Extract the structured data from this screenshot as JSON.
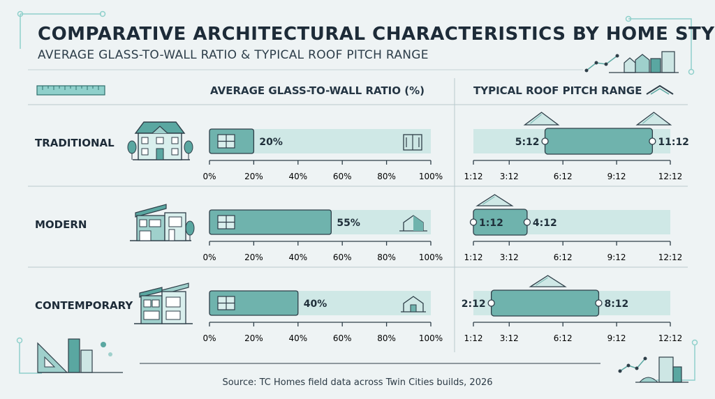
{
  "header": {
    "title": "COMPARATIVE ARCHITECTURAL CHARACTERISTICS BY HOME STYLE",
    "subtitle": "AVERAGE GLASS-TO-WALL RATIO & TYPICAL ROOF PITCH RANGE"
  },
  "columns": {
    "glass_header": "AVERAGE GLASS-TO-WALL RATIO (%)",
    "pitch_header": "TYPICAL ROOF PITCH RANGE"
  },
  "footer": {
    "source": "Source: TC Homes field data across Twin Cities builds, 2026"
  },
  "colors": {
    "accent": "#4e9e9a",
    "accent_dark": "#2f6f6c",
    "track": "#cfe8e6",
    "bar_fill": "#6fb3ad",
    "line": "#2e3e48",
    "divider": "#b9c9cd"
  },
  "icons": [
    "ruler-icon",
    "roof-icon",
    "traditional-house-icon",
    "modern-house-icon",
    "contemporary-house-icon",
    "window-icon",
    "skyline-icon"
  ],
  "chart_data": [
    {
      "type": "bar",
      "orientation": "horizontal",
      "title": "AVERAGE GLASS-TO-WALL RATIO (%)",
      "categories": [
        "TRADITIONAL",
        "MODERN",
        "CONTEMPORARY"
      ],
      "values": [
        20,
        55,
        40
      ],
      "value_labels": [
        "20%",
        "55%",
        "40%"
      ],
      "xlim": [
        0,
        100
      ],
      "ticks": [
        "0%",
        "20%",
        "40%",
        "60%",
        "80%",
        "100%"
      ]
    },
    {
      "type": "range",
      "orientation": "horizontal",
      "title": "TYPICAL ROOF PITCH RANGE",
      "categories": [
        "TRADITIONAL",
        "MODERN",
        "CONTEMPORARY"
      ],
      "ranges": [
        [
          5,
          11
        ],
        [
          1,
          4
        ],
        [
          2,
          8
        ]
      ],
      "range_labels": [
        [
          "5:12",
          "11:12"
        ],
        [
          "1:12",
          "4:12"
        ],
        [
          "2:12",
          "8:12"
        ]
      ],
      "xlim": [
        1,
        12
      ],
      "ticks": [
        "1:12",
        "3:12",
        "6:12",
        "9:12",
        "12:12"
      ],
      "tick_values": [
        1,
        3,
        6,
        9,
        12
      ]
    }
  ]
}
